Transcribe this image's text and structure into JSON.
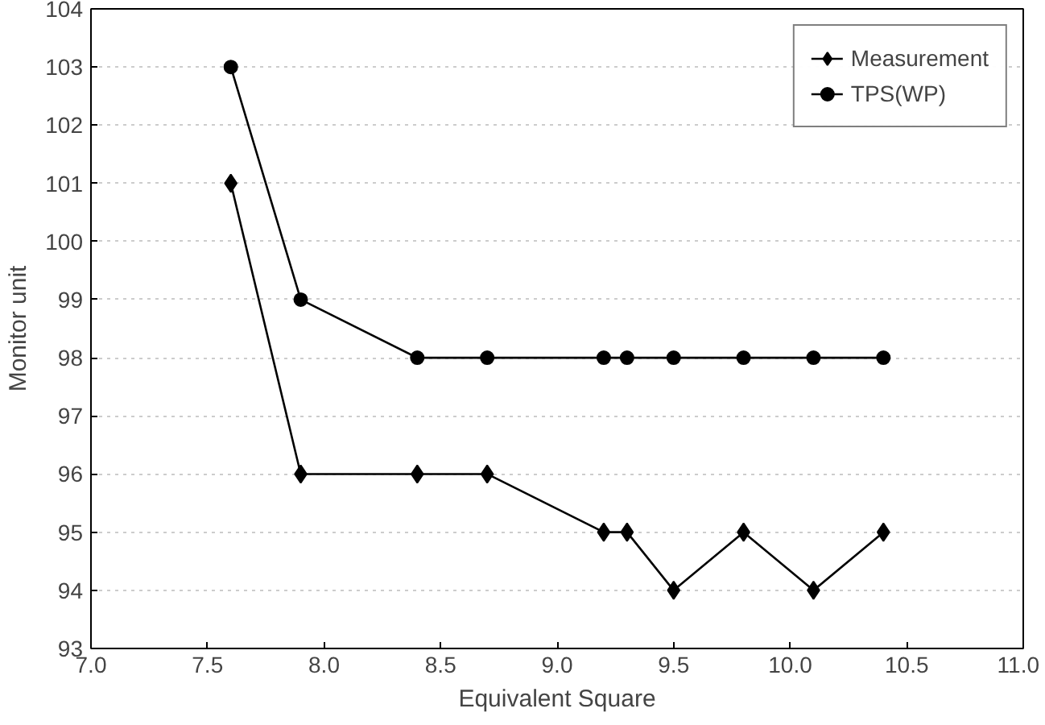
{
  "chart_data": {
    "type": "line",
    "xlabel": "Equivalent Square",
    "ylabel": "Monitor unit",
    "x": [
      7.6,
      7.9,
      8.4,
      8.7,
      9.2,
      9.3,
      9.5,
      9.8,
      10.1,
      10.4
    ],
    "series": [
      {
        "name": "Measurement",
        "color": "#000000",
        "marker": "diamond",
        "values": [
          101,
          96,
          96,
          96,
          95,
          95,
          94,
          95,
          94,
          95
        ]
      },
      {
        "name": "TPS(WP)",
        "color": "#000000",
        "marker": "circle",
        "values": [
          103,
          99,
          98,
          98,
          98,
          98,
          98,
          98,
          98,
          98
        ]
      }
    ],
    "xlim": [
      7.0,
      11.0
    ],
    "xticks": [
      {
        "value": 7.0,
        "label": "7.0"
      },
      {
        "value": 7.5,
        "label": "7.5"
      },
      {
        "value": 8.0,
        "label": "8.0"
      },
      {
        "value": 8.5,
        "label": "8.5"
      },
      {
        "value": 9.0,
        "label": "9.0"
      },
      {
        "value": 9.5,
        "label": "9.5"
      },
      {
        "value": 10.0,
        "label": "10.0"
      },
      {
        "value": 10.5,
        "label": "10.5"
      },
      {
        "value": 11.0,
        "label": "11.0"
      }
    ],
    "ylim": [
      93,
      104
    ],
    "yticks": [
      93,
      94,
      95,
      96,
      97,
      98,
      99,
      100,
      101,
      102,
      103,
      104
    ],
    "grid": "y",
    "legend": "top right",
    "line_style": "solid"
  }
}
